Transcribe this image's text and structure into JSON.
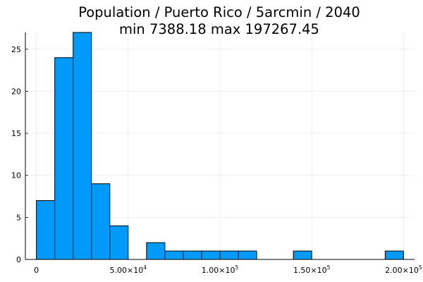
{
  "chart_data": {
    "type": "bar",
    "title_line1": "Population / Puerto Rico / 5arcmin / 2040",
    "title_line2": "min 7388.18  max 197267.45",
    "xlabel": "",
    "ylabel": "",
    "bin_width": 10000,
    "bins": [
      {
        "start": 0,
        "end": 10000,
        "count": 7
      },
      {
        "start": 10000,
        "end": 20000,
        "count": 24
      },
      {
        "start": 20000,
        "end": 30000,
        "count": 27
      },
      {
        "start": 30000,
        "end": 40000,
        "count": 9
      },
      {
        "start": 40000,
        "end": 50000,
        "count": 4
      },
      {
        "start": 50000,
        "end": 60000,
        "count": 0
      },
      {
        "start": 60000,
        "end": 70000,
        "count": 2
      },
      {
        "start": 70000,
        "end": 80000,
        "count": 1
      },
      {
        "start": 80000,
        "end": 90000,
        "count": 1
      },
      {
        "start": 90000,
        "end": 100000,
        "count": 1
      },
      {
        "start": 100000,
        "end": 110000,
        "count": 1
      },
      {
        "start": 110000,
        "end": 120000,
        "count": 1
      },
      {
        "start": 120000,
        "end": 130000,
        "count": 0
      },
      {
        "start": 130000,
        "end": 140000,
        "count": 0
      },
      {
        "start": 140000,
        "end": 150000,
        "count": 1
      },
      {
        "start": 150000,
        "end": 160000,
        "count": 0
      },
      {
        "start": 160000,
        "end": 170000,
        "count": 0
      },
      {
        "start": 170000,
        "end": 180000,
        "count": 0
      },
      {
        "start": 180000,
        "end": 190000,
        "count": 0
      },
      {
        "start": 190000,
        "end": 200000,
        "count": 1
      }
    ],
    "xlim": [
      -6000,
      206000
    ],
    "ylim": [
      0,
      27
    ],
    "x_ticks": [
      {
        "value": 0,
        "mantissa": "0",
        "exponent": ""
      },
      {
        "value": 50000,
        "mantissa": "5.00×10",
        "exponent": "4"
      },
      {
        "value": 100000,
        "mantissa": "1.00×10",
        "exponent": "5"
      },
      {
        "value": 150000,
        "mantissa": "1.50×10",
        "exponent": "5"
      },
      {
        "value": 200000,
        "mantissa": "2.00×10",
        "exponent": "5"
      }
    ],
    "y_ticks": [
      0,
      5,
      10,
      15,
      20,
      25
    ],
    "grid": true,
    "legend": "none",
    "bar_color": "#009AF9",
    "bar_edge_color": "#000000"
  }
}
